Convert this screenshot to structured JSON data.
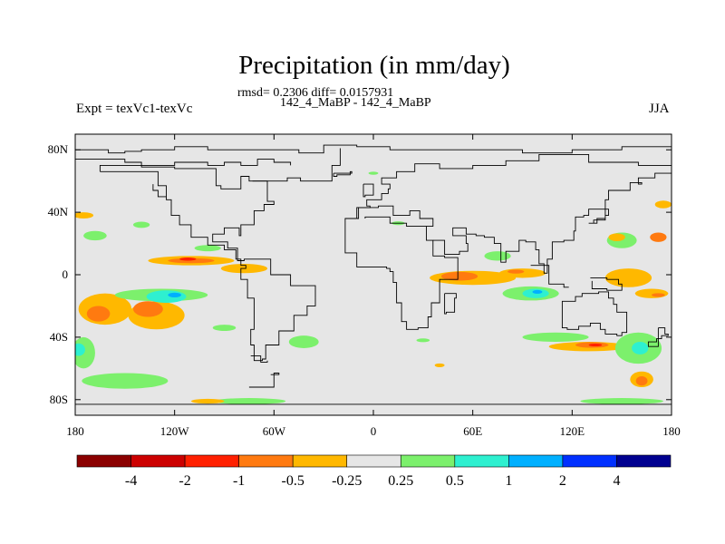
{
  "header": {
    "title": "Precipitation (in mm/day)",
    "stats": "rmsd= 0.2306 diff= 0.0157931",
    "models": "142_4_MaBP - 142_4_MaBP",
    "expt": "Expt = texVc1-texVc",
    "season": "JJA"
  },
  "chart_data": {
    "type": "contour-map",
    "title": "Precipitation (in mm/day)",
    "variable": "precipitation difference",
    "units": "mm/day",
    "xlabel": "",
    "ylabel": "",
    "xlim": [
      -180,
      180
    ],
    "ylim": [
      -90,
      90
    ],
    "x_ticks": [
      {
        "value": -180,
        "label": "180"
      },
      {
        "value": -120,
        "label": "120W"
      },
      {
        "value": -60,
        "label": "60W"
      },
      {
        "value": 0,
        "label": "0"
      },
      {
        "value": 60,
        "label": "60E"
      },
      {
        "value": 120,
        "label": "120E"
      },
      {
        "value": 180,
        "label": "180"
      }
    ],
    "y_ticks": [
      {
        "value": 80,
        "label": "80N"
      },
      {
        "value": 40,
        "label": "40N"
      },
      {
        "value": 0,
        "label": "0"
      },
      {
        "value": -40,
        "label": "40S"
      },
      {
        "value": -80,
        "label": "80S"
      }
    ],
    "colorbar": {
      "levels": [
        "-4",
        "-2",
        "-1",
        "-0.5",
        "-0.25",
        "0.25",
        "0.5",
        "1",
        "2",
        "4"
      ],
      "colors": [
        "#8b0000",
        "#cc0000",
        "#ff2000",
        "#ff7a10",
        "#ffb800",
        "#e6e6e6",
        "#7cf06c",
        "#2ef0d0",
        "#00b0ff",
        "#0030ff",
        "#000090"
      ]
    },
    "regions": [
      {
        "lon": -110,
        "lat": 9,
        "rlon": 26,
        "rlat": 3,
        "color": "#ffb800"
      },
      {
        "lon": -110,
        "lat": 9,
        "rlon": 14,
        "rlat": 1.6,
        "color": "#ff7a10"
      },
      {
        "lon": -112,
        "lat": 10,
        "rlon": 5,
        "rlat": 1.0,
        "color": "#ff2000"
      },
      {
        "lon": -78,
        "lat": 4,
        "rlon": 14,
        "rlat": 3,
        "color": "#ffb800"
      },
      {
        "lon": -162,
        "lat": -22,
        "rlon": 16,
        "rlat": 10,
        "color": "#ffb800"
      },
      {
        "lon": -166,
        "lat": -25,
        "rlon": 7,
        "rlat": 5,
        "color": "#ff7a10"
      },
      {
        "lon": -131,
        "lat": -26,
        "rlon": 17,
        "rlat": 9,
        "color": "#ffb800"
      },
      {
        "lon": -136,
        "lat": -22,
        "rlon": 9,
        "rlat": 5,
        "color": "#ff7a10"
      },
      {
        "lon": -128,
        "lat": -13,
        "rlon": 28,
        "rlat": 4,
        "color": "#7cf06c"
      },
      {
        "lon": -125,
        "lat": -14,
        "rlon": 12,
        "rlat": 4,
        "color": "#2ef0d0"
      },
      {
        "lon": -120,
        "lat": -13,
        "rlon": 4,
        "rlat": 1.5,
        "color": "#00b0ff"
      },
      {
        "lon": -168,
        "lat": 25,
        "rlon": 7,
        "rlat": 3,
        "color": "#7cf06c"
      },
      {
        "lon": -175,
        "lat": 38,
        "rlon": 6,
        "rlat": 2,
        "color": "#ffb800"
      },
      {
        "lon": -140,
        "lat": 32,
        "rlon": 5,
        "rlat": 2,
        "color": "#7cf06c"
      },
      {
        "lon": -100,
        "lat": 17,
        "rlon": 8,
        "rlat": 2,
        "color": "#7cf06c"
      },
      {
        "lon": -175,
        "lat": -50,
        "rlon": 7,
        "rlat": 10,
        "color": "#7cf06c"
      },
      {
        "lon": -178,
        "lat": -48,
        "rlon": 4,
        "rlat": 4,
        "color": "#2ef0d0"
      },
      {
        "lon": -150,
        "lat": -68,
        "rlon": 26,
        "rlat": 5,
        "color": "#7cf06c"
      },
      {
        "lon": -90,
        "lat": -34,
        "rlon": 7,
        "rlat": 2,
        "color": "#7cf06c"
      },
      {
        "lon": -42,
        "lat": -43,
        "rlon": 9,
        "rlat": 4,
        "color": "#7cf06c"
      },
      {
        "lon": -75,
        "lat": -81,
        "rlon": 22,
        "rlat": 2,
        "color": "#7cf06c"
      },
      {
        "lon": -100,
        "lat": -81,
        "rlon": 10,
        "rlat": 1.5,
        "color": "#ffb800"
      },
      {
        "lon": 60,
        "lat": -2,
        "rlon": 26,
        "rlat": 4.5,
        "color": "#ffb800"
      },
      {
        "lon": 52,
        "lat": -1,
        "rlon": 11,
        "rlat": 2.8,
        "color": "#ff7a10"
      },
      {
        "lon": 90,
        "lat": 1,
        "rlon": 14,
        "rlat": 3,
        "color": "#ffb800"
      },
      {
        "lon": 86,
        "lat": 2,
        "rlon": 5,
        "rlat": 1.3,
        "color": "#ff7a10"
      },
      {
        "lon": 75,
        "lat": 12,
        "rlon": 8,
        "rlat": 3,
        "color": "#7cf06c"
      },
      {
        "lon": 95,
        "lat": -12,
        "rlon": 17,
        "rlat": 4.5,
        "color": "#7cf06c"
      },
      {
        "lon": 98,
        "lat": -12,
        "rlon": 8,
        "rlat": 3,
        "color": "#2ef0d0"
      },
      {
        "lon": 99,
        "lat": -11,
        "rlon": 3,
        "rlat": 1.2,
        "color": "#00b0ff"
      },
      {
        "lon": 150,
        "lat": 22,
        "rlon": 9,
        "rlat": 5,
        "color": "#7cf06c"
      },
      {
        "lon": 147,
        "lat": 24,
        "rlon": 5,
        "rlat": 2.5,
        "color": "#ffb800"
      },
      {
        "lon": 172,
        "lat": 24,
        "rlon": 5,
        "rlat": 3,
        "color": "#ff7a10"
      },
      {
        "lon": 175,
        "lat": 45,
        "rlon": 5,
        "rlat": 2.5,
        "color": "#ffb800"
      },
      {
        "lon": 154,
        "lat": -2,
        "rlon": 14,
        "rlat": 6,
        "color": "#ffb800"
      },
      {
        "lon": 168,
        "lat": -12,
        "rlon": 10,
        "rlat": 3,
        "color": "#ffb800"
      },
      {
        "lon": 172,
        "lat": -13,
        "rlon": 4,
        "rlat": 1.2,
        "color": "#ff7a10"
      },
      {
        "lon": 130,
        "lat": -46,
        "rlon": 24,
        "rlat": 3,
        "color": "#ffb800"
      },
      {
        "lon": 132,
        "lat": -45,
        "rlon": 10,
        "rlat": 1.8,
        "color": "#ff7a10"
      },
      {
        "lon": 134,
        "lat": -45,
        "rlon": 4,
        "rlat": 0.9,
        "color": "#ff2000"
      },
      {
        "lon": 110,
        "lat": -40,
        "rlon": 20,
        "rlat": 3,
        "color": "#7cf06c"
      },
      {
        "lon": 160,
        "lat": -47,
        "rlon": 14,
        "rlat": 10,
        "color": "#7cf06c"
      },
      {
        "lon": 161,
        "lat": -47,
        "rlon": 5,
        "rlat": 4,
        "color": "#2ef0d0"
      },
      {
        "lon": 162,
        "lat": -67,
        "rlon": 7,
        "rlat": 5,
        "color": "#ffb800"
      },
      {
        "lon": 162,
        "lat": -68,
        "rlon": 3.5,
        "rlat": 3,
        "color": "#ff7a10"
      },
      {
        "lon": 150,
        "lat": -81,
        "rlon": 25,
        "rlat": 2,
        "color": "#7cf06c"
      },
      {
        "lon": 40,
        "lat": -58,
        "rlon": 3,
        "rlat": 1.2,
        "color": "#ffb800"
      },
      {
        "lon": 30,
        "lat": -42,
        "rlon": 4,
        "rlat": 1.2,
        "color": "#7cf06c"
      },
      {
        "lon": 15,
        "lat": 33,
        "rlon": 4,
        "rlat": 1.2,
        "color": "#7cf06c"
      },
      {
        "lon": 0,
        "lat": 65,
        "rlon": 3,
        "rlat": 1,
        "color": "#7cf06c"
      }
    ],
    "coastlines": [
      [
        [
          -180,
          -83
        ],
        [
          180,
          -83
        ]
      ],
      [
        [
          -180,
          80
        ],
        [
          -160,
          78
        ],
        [
          -150,
          79
        ],
        [
          -140,
          80
        ],
        [
          -120,
          82
        ],
        [
          -100,
          80
        ],
        [
          -70,
          80
        ],
        [
          -45,
          78
        ],
        [
          -30,
          83
        ],
        [
          -10,
          82
        ],
        [
          10,
          80
        ],
        [
          30,
          80
        ],
        [
          60,
          80
        ],
        [
          90,
          78
        ],
        [
          120,
          80
        ],
        [
          150,
          82
        ],
        [
          180,
          80
        ]
      ],
      [
        [
          -180,
          74
        ],
        [
          -150,
          72
        ],
        [
          -140,
          70
        ],
        [
          -120,
          72
        ],
        [
          -100,
          70
        ],
        [
          -90,
          72
        ],
        [
          -80,
          70
        ],
        [
          -70,
          74
        ],
        [
          -60,
          72
        ],
        [
          -50,
          70
        ]
      ],
      [
        [
          -165,
          66
        ],
        [
          -130,
          57
        ],
        [
          -125,
          48
        ],
        [
          -122,
          38
        ],
        [
          -117,
          32
        ],
        [
          -110,
          24
        ],
        [
          -100,
          19
        ],
        [
          -90,
          16
        ],
        [
          -83,
          10
        ],
        [
          -80,
          6
        ],
        [
          -77,
          4
        ],
        [
          -80,
          -3
        ],
        [
          -76,
          -15
        ],
        [
          -72,
          -25
        ],
        [
          -72,
          -35
        ],
        [
          -74,
          -45
        ],
        [
          -72,
          -55
        ],
        [
          -67,
          -54
        ],
        [
          -65,
          -45
        ],
        [
          -57,
          -36
        ],
        [
          -48,
          -26
        ],
        [
          -40,
          -20
        ],
        [
          -35,
          -7
        ],
        [
          -50,
          0
        ],
        [
          -62,
          10
        ],
        [
          -78,
          9
        ],
        [
          -82,
          17
        ],
        [
          -88,
          21
        ],
        [
          -97,
          26
        ],
        [
          -90,
          30
        ],
        [
          -81,
          25
        ],
        [
          -80,
          32
        ],
        [
          -72,
          41
        ],
        [
          -66,
          45
        ],
        [
          -60,
          47
        ],
        [
          -64,
          60
        ],
        [
          -75,
          63
        ],
        [
          -80,
          55
        ],
        [
          -92,
          57
        ],
        [
          -95,
          68
        ],
        [
          -120,
          69
        ],
        [
          -140,
          70
        ],
        [
          -165,
          66
        ]
      ],
      [
        [
          -73,
          60
        ],
        [
          -52,
          62
        ],
        [
          -44,
          60
        ],
        [
          -25,
          70
        ],
        [
          -20,
          81
        ]
      ],
      [
        [
          -10,
          36
        ],
        [
          -17,
          20
        ],
        [
          -17,
          14
        ],
        [
          -10,
          5
        ],
        [
          0,
          5
        ],
        [
          8,
          4
        ],
        [
          10,
          2
        ],
        [
          12,
          -5
        ],
        [
          14,
          -18
        ],
        [
          17,
          -30
        ],
        [
          20,
          -35
        ],
        [
          27,
          -34
        ],
        [
          33,
          -27
        ],
        [
          35,
          -18
        ],
        [
          40,
          -12
        ],
        [
          40,
          -3
        ],
        [
          51,
          11
        ],
        [
          43,
          12
        ],
        [
          36,
          22
        ],
        [
          32,
          31
        ],
        [
          20,
          33
        ],
        [
          10,
          37
        ],
        [
          -5,
          36
        ]
      ],
      [
        [
          -10,
          36
        ],
        [
          -9,
          43
        ],
        [
          -2,
          44
        ],
        [
          -4,
          48
        ],
        [
          5,
          52
        ],
        [
          9,
          55
        ],
        [
          10,
          58
        ],
        [
          5,
          62
        ],
        [
          14,
          66
        ],
        [
          25,
          71
        ],
        [
          40,
          68
        ],
        [
          60,
          70
        ],
        [
          80,
          73
        ],
        [
          100,
          77
        ],
        [
          130,
          72
        ],
        [
          140,
          72
        ],
        [
          160,
          70
        ],
        [
          180,
          68
        ]
      ],
      [
        [
          32,
          31
        ],
        [
          36,
          36
        ],
        [
          28,
          41
        ],
        [
          22,
          38
        ],
        [
          12,
          44
        ],
        [
          3,
          43
        ],
        [
          -10,
          36
        ]
      ],
      [
        [
          36,
          22
        ],
        [
          43,
          13
        ],
        [
          52,
          15
        ],
        [
          57,
          20
        ],
        [
          56,
          25
        ],
        [
          48,
          30
        ],
        [
          56,
          26
        ],
        [
          62,
          25
        ],
        [
          67,
          24
        ],
        [
          73,
          20
        ],
        [
          77,
          8
        ],
        [
          80,
          15
        ],
        [
          88,
          22
        ],
        [
          92,
          21
        ],
        [
          98,
          16
        ],
        [
          100,
          7
        ],
        [
          103,
          1
        ],
        [
          105,
          10
        ],
        [
          108,
          16
        ],
        [
          108,
          21
        ],
        [
          115,
          22
        ],
        [
          121,
          28
        ],
        [
          122,
          37
        ],
        [
          127,
          38
        ],
        [
          130,
          42
        ],
        [
          140,
          48
        ],
        [
          142,
          54
        ],
        [
          155,
          59
        ],
        [
          162,
          58
        ],
        [
          160,
          62
        ],
        [
          170,
          65
        ],
        [
          180,
          65
        ]
      ],
      [
        [
          95,
          6
        ],
        [
          106,
          -6
        ],
        [
          115,
          -8
        ],
        [
          118,
          -8
        ]
      ],
      [
        [
          114,
          -22
        ],
        [
          114,
          -34
        ],
        [
          117,
          -35
        ],
        [
          124,
          -33
        ],
        [
          131,
          -31
        ],
        [
          137,
          -35
        ],
        [
          140,
          -38
        ],
        [
          147,
          -39
        ],
        [
          150,
          -37
        ],
        [
          153,
          -28
        ],
        [
          153,
          -24
        ],
        [
          147,
          -19
        ],
        [
          145,
          -15
        ],
        [
          142,
          -11
        ],
        [
          136,
          -12
        ],
        [
          131,
          -12
        ],
        [
          126,
          -14
        ],
        [
          122,
          -17
        ],
        [
          114,
          -22
        ]
      ],
      [
        [
          131,
          -2
        ],
        [
          141,
          -3
        ],
        [
          148,
          -6
        ],
        [
          150,
          -10
        ],
        [
          141,
          -9
        ],
        [
          132,
          -4
        ]
      ],
      [
        [
          172,
          -34
        ],
        [
          176,
          -38
        ],
        [
          178,
          -39
        ],
        [
          174,
          -41
        ],
        [
          171,
          -43
        ],
        [
          166,
          -46
        ],
        [
          172,
          -41
        ],
        [
          172,
          -34
        ]
      ],
      [
        [
          130,
          33
        ],
        [
          133,
          35
        ],
        [
          140,
          38
        ],
        [
          142,
          42
        ],
        [
          140,
          36
        ],
        [
          135,
          33
        ],
        [
          130,
          33
        ]
      ],
      [
        [
          43,
          -12
        ],
        [
          50,
          -15
        ],
        [
          49,
          -24
        ],
        [
          44,
          -25
        ],
        [
          43,
          -12
        ]
      ],
      [
        [
          -6,
          58
        ],
        [
          -3,
          58
        ],
        [
          0,
          51
        ],
        [
          -5,
          50
        ],
        [
          -6,
          55
        ],
        [
          -6,
          58
        ]
      ],
      [
        [
          -24,
          65
        ],
        [
          -13,
          66
        ],
        [
          -14,
          64
        ],
        [
          -22,
          63
        ],
        [
          -24,
          65
        ]
      ],
      [
        [
          -125,
          50
        ],
        [
          -128,
          50
        ],
        [
          -130,
          54
        ],
        [
          -133,
          58
        ]
      ],
      [
        [
          -70,
          -52
        ],
        [
          -74,
          -52
        ],
        [
          -68,
          -56
        ],
        [
          -64,
          -55
        ]
      ],
      [
        [
          -62,
          -64
        ],
        [
          -57,
          -63
        ],
        [
          -60,
          -72
        ],
        [
          -75,
          -72
        ]
      ]
    ]
  }
}
